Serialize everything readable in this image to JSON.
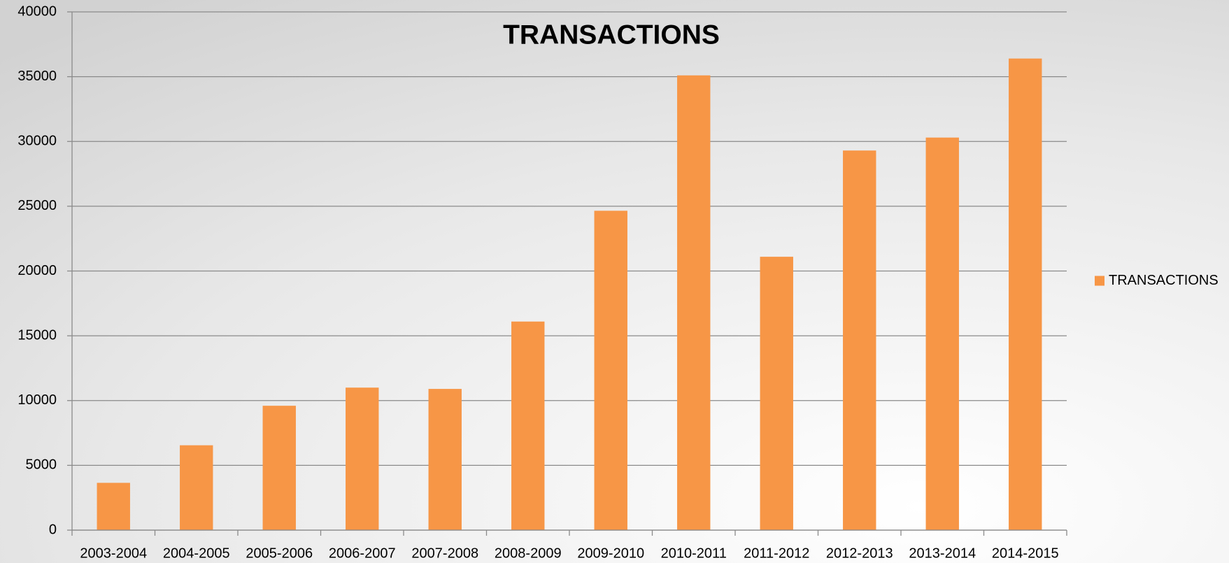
{
  "chart_data": {
    "type": "bar",
    "title": "TRANSACTIONS",
    "categories": [
      "2003-2004",
      "2004-2005",
      "2005-2006",
      "2006-2007",
      "2007-2008",
      "2008-2009",
      "2009-2010",
      "2010-2011",
      "2011-2012",
      "2012-2013",
      "2013-2014",
      "2014-2015"
    ],
    "series": [
      {
        "name": "TRANSACTIONS",
        "color": "#f79646",
        "values": [
          3650,
          6550,
          9600,
          11000,
          10900,
          16100,
          24650,
          35100,
          21100,
          29300,
          30300,
          36400
        ]
      }
    ],
    "ylim": [
      0,
      40000
    ],
    "yticks": [
      0,
      5000,
      10000,
      15000,
      20000,
      25000,
      30000,
      35000,
      40000
    ],
    "grid": true,
    "legend": "right"
  }
}
